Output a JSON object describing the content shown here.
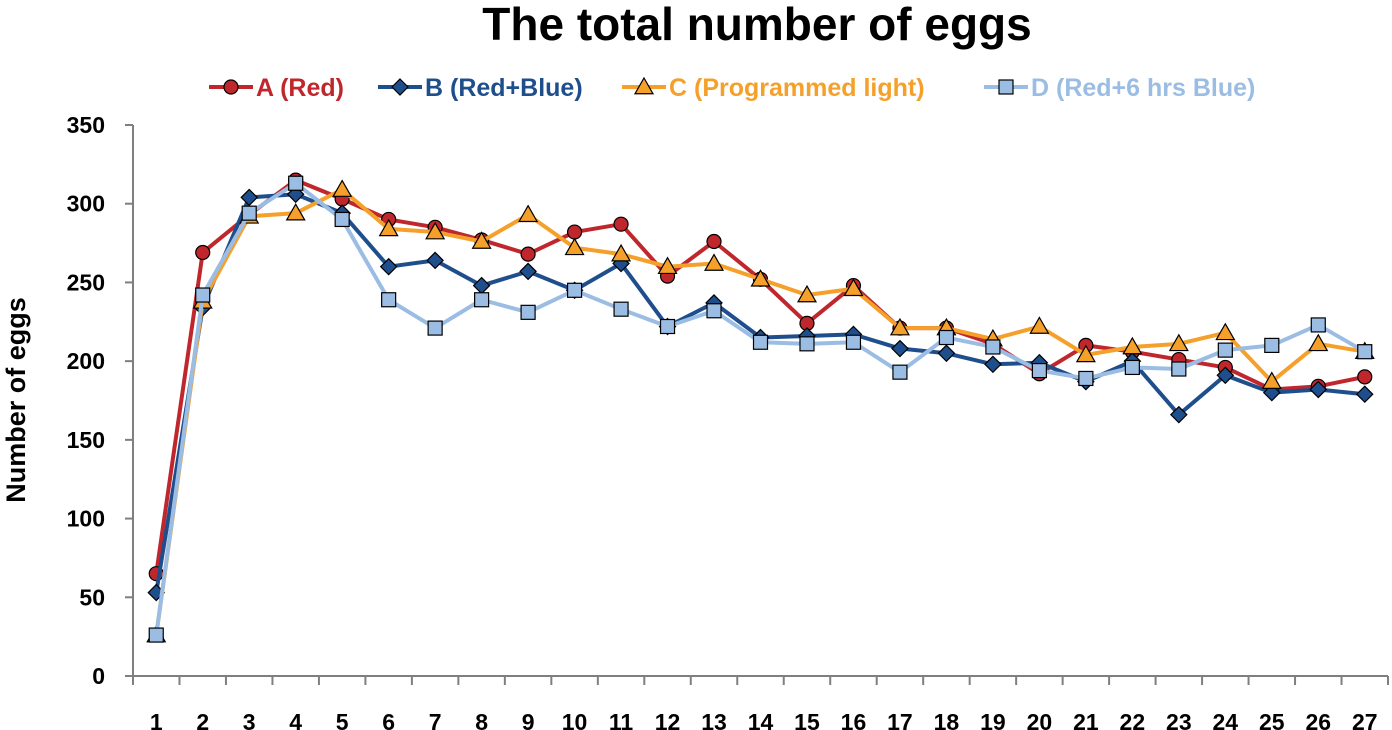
{
  "chart_data": {
    "type": "line",
    "title": "The total number of eggs",
    "xlabel": "",
    "ylabel": "Number of eggs",
    "x": [
      "1",
      "2",
      "3",
      "4",
      "5",
      "6",
      "7",
      "8",
      "9",
      "10",
      "11",
      "12",
      "13",
      "14",
      "15",
      "16",
      "17",
      "18",
      "19",
      "20",
      "21",
      "22",
      "23",
      "24",
      "25",
      "26",
      "27"
    ],
    "ylim": [
      0,
      350
    ],
    "yticks": [
      0,
      50,
      100,
      150,
      200,
      250,
      300,
      350
    ],
    "grid": false,
    "legend_position": "top",
    "series": [
      {
        "name": "A (Red)",
        "color": "#c0272d",
        "marker": "circle",
        "values": [
          65,
          269,
          293,
          315,
          303,
          290,
          285,
          277,
          268,
          282,
          287,
          254,
          276,
          252,
          224,
          248,
          221,
          221,
          211,
          192,
          210,
          206,
          201,
          196,
          182,
          184,
          190
        ]
      },
      {
        "name": "B (Red+Blue)",
        "color": "#1f4e8c",
        "marker": "diamond",
        "values": [
          53,
          234,
          304,
          306,
          294,
          260,
          264,
          248,
          257,
          245,
          262,
          222,
          237,
          215,
          216,
          217,
          208,
          205,
          198,
          199,
          187,
          200,
          166,
          191,
          180,
          182,
          179
        ]
      },
      {
        "name": "C (Programmed light)",
        "color": "#f5a02a",
        "marker": "triangle",
        "values": [
          26,
          238,
          292,
          294,
          309,
          284,
          282,
          276,
          293,
          272,
          268,
          260,
          262,
          252,
          242,
          246,
          221,
          221,
          214,
          222,
          204,
          209,
          211,
          218,
          187,
          211,
          206
        ]
      },
      {
        "name": "D (Red+6 hrs Blue)",
        "color": "#9bbde3",
        "marker": "square",
        "values": [
          26,
          242,
          294,
          313,
          290,
          239,
          221,
          239,
          231,
          245,
          233,
          222,
          232,
          212,
          211,
          212,
          193,
          215,
          209,
          194,
          189,
          196,
          195,
          207,
          210,
          223,
          206
        ]
      }
    ]
  }
}
